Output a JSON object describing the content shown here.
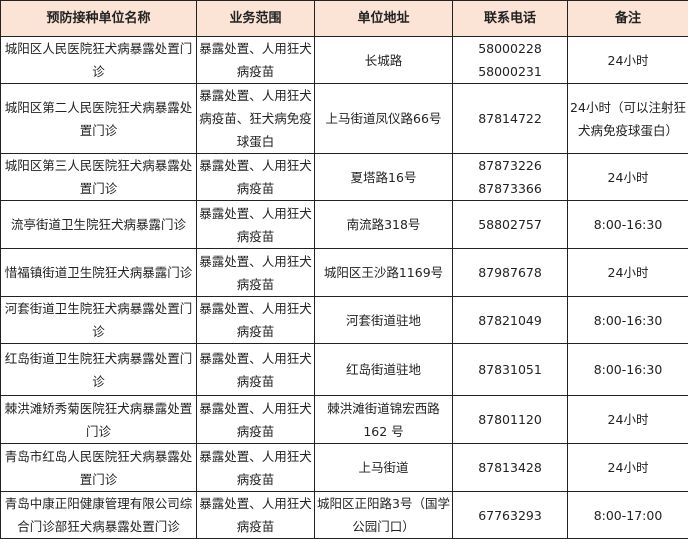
{
  "header_bg": "#fbe4d5",
  "columns": [
    "预防接种单位名称",
    "业务范围",
    "单位地址",
    "联系电话",
    "备注"
  ],
  "rows": [
    {
      "name": "城阳区人民医院狂犬病暴露处置门诊",
      "scope": "暴露处置、人用狂犬病疫苗",
      "address": "长城路",
      "phone": "58000228 58000231",
      "note": "24小时"
    },
    {
      "name": "城阳区第二人民医院狂犬病暴露处置门诊",
      "scope": "暴露处置、人用狂犬病疫苗、狂犬病免疫球蛋白",
      "address": "上马街道凤仪路66号",
      "phone": "87814722",
      "note": "24小时（可以注射狂犬病免疫球蛋白）"
    },
    {
      "name": "城阳区第三人民医院狂犬病暴露处置门诊",
      "scope": "暴露处置、人用狂犬病疫苗",
      "address": "夏塔路16号",
      "phone": "87873226 87873366",
      "note": "24小时"
    },
    {
      "name": "流亭街道卫生院狂犬病暴露门诊",
      "scope": "暴露处置、人用狂犬病疫苗",
      "address": "南流路318号",
      "phone": "58802757",
      "note": "8:00-16:30"
    },
    {
      "name": "惜福镇街道卫生院狂犬病暴露门诊",
      "scope": "暴露处置、人用狂犬病疫苗",
      "address": "城阳区王沙路1169号",
      "phone": "87987678",
      "note": "24小时"
    },
    {
      "name": "河套街道卫生院狂犬病暴露处置门诊",
      "scope": "暴露处置、人用狂犬病疫苗",
      "address": "河套街道驻地",
      "phone": "87821049",
      "note": "8:00-16:30"
    },
    {
      "name": "红岛街道卫生院狂犬病暴露处置门诊",
      "scope": "暴露处置、人用狂犬病疫苗",
      "address": "红岛街道驻地",
      "phone": "87831051",
      "note": "8:00-16:30"
    },
    {
      "name": "棘洪滩矫秀菊医院狂犬病暴露处置门诊",
      "scope": "暴露处置、人用狂犬病疫苗",
      "address": "棘洪滩街道锦宏西路162 号",
      "phone": "87801120",
      "note": "24小时"
    },
    {
      "name": "青岛市红岛人民医院狂犬病暴露处置门诊",
      "scope": "暴露处置、人用狂犬病疫苗",
      "address": "上马街道",
      "phone": "87813428",
      "note": "24小时"
    },
    {
      "name": "青岛中康正阳健康管理有限公司综合门诊部狂犬病暴露处置门诊",
      "scope": "暴露处置、人用狂犬病疫苗",
      "address": "城阳区正阳路3号（国学公园门口）",
      "phone": "67763293",
      "note": "8:00-17:00"
    }
  ]
}
